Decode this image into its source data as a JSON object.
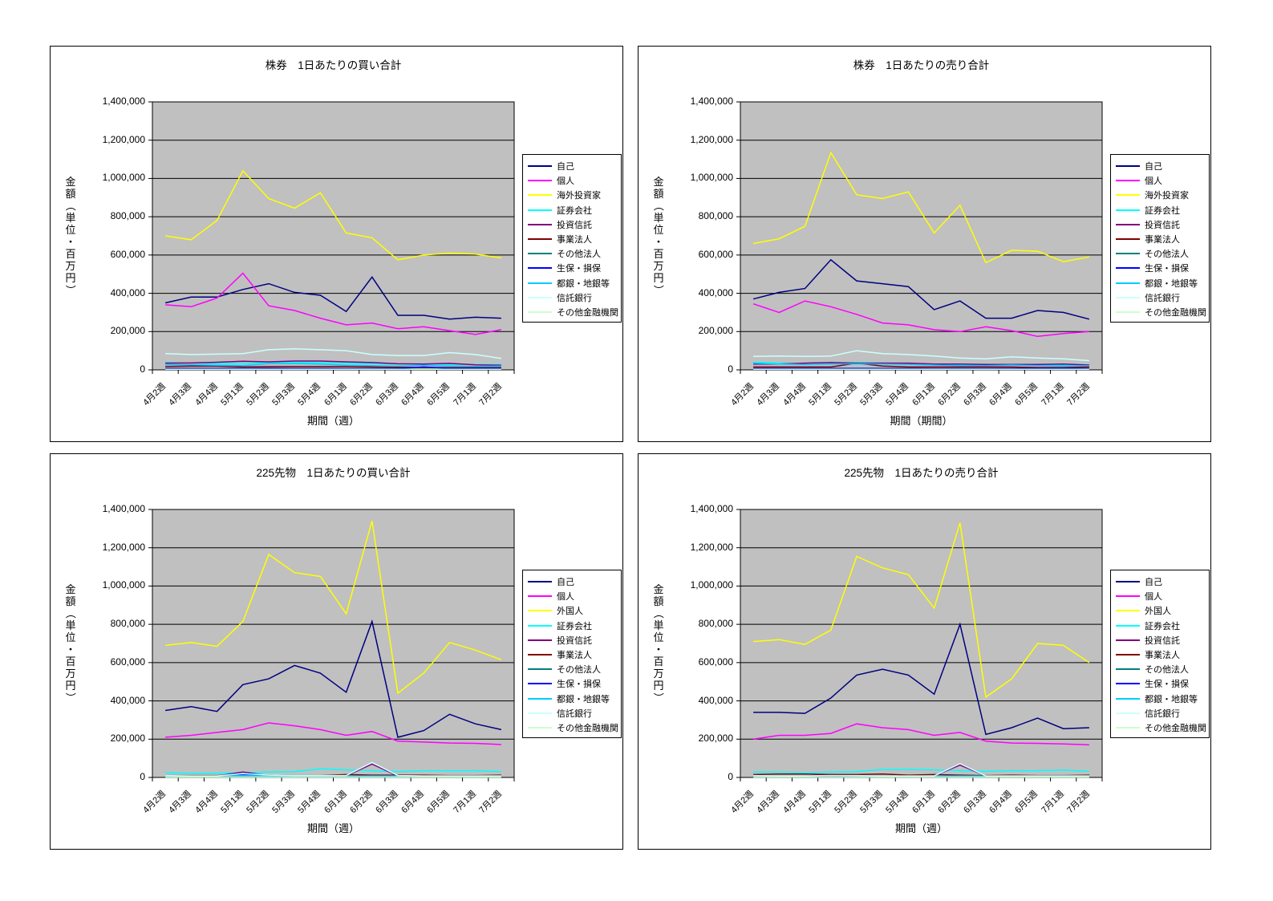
{
  "colors": {
    "page_background": "#FFFFFF",
    "panel_border": "#000000",
    "plot_background": "#C0C0C0",
    "grid": "#000000",
    "legend_background": "#FFFFFF"
  },
  "chart_data": [
    {
      "type": "line",
      "title": "株券　1日あたりの買い合計",
      "xlabel": "期間（週）",
      "ylabel": "金額（単位・百万円）",
      "ylim": [
        0,
        1400000
      ],
      "ytick_step": 200000,
      "grid": true,
      "legend_position": "right",
      "categories": [
        "4月2週",
        "4月3週",
        "4月4週",
        "5月1週",
        "5月2週",
        "5月3週",
        "5月4週",
        "6月1週",
        "6月2週",
        "6月3週",
        "6月4週",
        "6月5週",
        "7月1週",
        "7月2週"
      ],
      "series": [
        {
          "name": "自己",
          "color": "#000080",
          "values": [
            350000,
            380000,
            380000,
            420000,
            450000,
            405000,
            390000,
            305000,
            485000,
            285000,
            285000,
            265000,
            275000,
            270000
          ]
        },
        {
          "name": "個人",
          "color": "#FF00FF",
          "values": [
            340000,
            330000,
            375000,
            505000,
            335000,
            310000,
            270000,
            235000,
            245000,
            215000,
            225000,
            205000,
            185000,
            210000
          ]
        },
        {
          "name": "海外投資家",
          "color": "#FFFF00",
          "values": [
            700000,
            680000,
            780000,
            1040000,
            895000,
            845000,
            925000,
            715000,
            690000,
            575000,
            600000,
            610000,
            605000,
            585000
          ]
        },
        {
          "name": "証券会社",
          "color": "#00FFFF",
          "values": [
            40000,
            35000,
            33000,
            32000,
            40000,
            40000,
            38000,
            35000,
            33000,
            30000,
            32000,
            28000,
            28000,
            28000
          ]
        },
        {
          "name": "投資信託",
          "color": "#800080",
          "values": [
            35000,
            36000,
            40000,
            45000,
            42000,
            46000,
            46000,
            42000,
            38000,
            32000,
            30000,
            34000,
            26000,
            24000
          ]
        },
        {
          "name": "事業法人",
          "color": "#800000",
          "values": [
            18000,
            20000,
            20000,
            15000,
            17000,
            17000,
            17000,
            17000,
            15000,
            14000,
            12000,
            12000,
            12000,
            12000
          ]
        },
        {
          "name": "その他法人",
          "color": "#008080",
          "values": [
            5000,
            5000,
            5000,
            4000,
            5000,
            5000,
            5000,
            4000,
            4000,
            4000,
            4000,
            4000,
            4000,
            4000
          ]
        },
        {
          "name": "生保・損保",
          "color": "#0000FF",
          "values": [
            8000,
            8000,
            8000,
            8000,
            9000,
            8000,
            8000,
            7000,
            7000,
            7000,
            15000,
            8000,
            8000,
            8000
          ]
        },
        {
          "name": "都銀・地銀等",
          "color": "#00CCFF",
          "values": [
            28000,
            26000,
            24000,
            22000,
            33000,
            33000,
            30000,
            24000,
            22000,
            20000,
            24000,
            20000,
            18000,
            20000
          ]
        },
        {
          "name": "信託銀行",
          "color": "#CCFFFF",
          "values": [
            85000,
            80000,
            82000,
            85000,
            105000,
            110000,
            105000,
            100000,
            80000,
            75000,
            75000,
            90000,
            80000,
            60000
          ]
        },
        {
          "name": "その他金融機関",
          "color": "#CCFFCC",
          "values": [
            3000,
            3000,
            3000,
            3000,
            3000,
            3000,
            3000,
            3000,
            3000,
            3000,
            3000,
            3000,
            3000,
            3000
          ]
        }
      ]
    },
    {
      "type": "line",
      "title": "株券　1日あたりの売り合計",
      "xlabel": "期間（期間）",
      "ylabel": "金額（単位・百万円）",
      "ylim": [
        0,
        1400000
      ],
      "ytick_step": 200000,
      "grid": true,
      "legend_position": "right",
      "categories": [
        "4月2週",
        "4月3週",
        "4月4週",
        "5月1週",
        "5月2週",
        "5月3週",
        "5月4週",
        "6月1週",
        "6月2週",
        "6月3週",
        "6月4週",
        "6月5週",
        "7月1週",
        "7月2週"
      ],
      "series": [
        {
          "name": "自己",
          "color": "#000080",
          "values": [
            370000,
            405000,
            425000,
            575000,
            465000,
            450000,
            435000,
            315000,
            360000,
            270000,
            270000,
            310000,
            300000,
            265000
          ]
        },
        {
          "name": "個人",
          "color": "#FF00FF",
          "values": [
            345000,
            300000,
            360000,
            330000,
            290000,
            245000,
            235000,
            210000,
            200000,
            225000,
            205000,
            175000,
            190000,
            200000
          ]
        },
        {
          "name": "海外投資家",
          "color": "#FFFF00",
          "values": [
            660000,
            685000,
            750000,
            1135000,
            915000,
            895000,
            930000,
            715000,
            860000,
            560000,
            625000,
            620000,
            565000,
            590000
          ]
        },
        {
          "name": "証券会社",
          "color": "#00FFFF",
          "values": [
            40000,
            35000,
            32000,
            35000,
            38000,
            35000,
            32000,
            28000,
            28000,
            25000,
            28000,
            25000,
            25000,
            25000
          ]
        },
        {
          "name": "投資信託",
          "color": "#800080",
          "values": [
            30000,
            30000,
            35000,
            38000,
            35000,
            35000,
            35000,
            30000,
            30000,
            28000,
            28000,
            28000,
            30000,
            25000
          ]
        },
        {
          "name": "事業法人",
          "color": "#800000",
          "values": [
            15000,
            15000,
            15000,
            15000,
            35000,
            20000,
            15000,
            15000,
            15000,
            15000,
            15000,
            12000,
            12000,
            15000
          ]
        },
        {
          "name": "その他法人",
          "color": "#008080",
          "values": [
            5000,
            5000,
            5000,
            4000,
            5000,
            5000,
            5000,
            4000,
            4000,
            4000,
            4000,
            4000,
            4000,
            4000
          ]
        },
        {
          "name": "生保・損保",
          "color": "#0000FF",
          "values": [
            8000,
            8000,
            8000,
            8000,
            8000,
            8000,
            8000,
            7000,
            7000,
            7000,
            8000,
            8000,
            8000,
            8000
          ]
        },
        {
          "name": "都銀・地銀等",
          "color": "#00CCFF",
          "values": [
            35000,
            30000,
            28000,
            30000,
            32000,
            30000,
            28000,
            25000,
            22000,
            22000,
            25000,
            22000,
            20000,
            22000
          ]
        },
        {
          "name": "信託銀行",
          "color": "#CCFFFF",
          "values": [
            70000,
            72000,
            70000,
            72000,
            100000,
            85000,
            80000,
            72000,
            62000,
            58000,
            68000,
            62000,
            58000,
            48000
          ]
        },
        {
          "name": "その他金融機関",
          "color": "#CCFFCC",
          "values": [
            3000,
            3000,
            3000,
            3000,
            3000,
            3000,
            3000,
            3000,
            3000,
            3000,
            3000,
            3000,
            3000,
            3000
          ]
        }
      ]
    },
    {
      "type": "line",
      "title": "225先物　1日あたりの買い合計",
      "xlabel": "期間（週）",
      "ylabel": "金額（単位・百万円）",
      "ylim": [
        0,
        1400000
      ],
      "ytick_step": 200000,
      "grid": true,
      "legend_position": "right",
      "categories": [
        "4月2週",
        "4月3週",
        "4月4週",
        "5月1週",
        "5月2週",
        "5月3週",
        "5月4週",
        "6月1週",
        "6月2週",
        "6月3週",
        "6月4週",
        "6月5週",
        "7月1週",
        "7月2週"
      ],
      "series": [
        {
          "name": "自己",
          "color": "#000080",
          "values": [
            350000,
            370000,
            345000,
            485000,
            515000,
            585000,
            545000,
            445000,
            815000,
            210000,
            245000,
            330000,
            280000,
            250000
          ]
        },
        {
          "name": "個人",
          "color": "#FF00FF",
          "values": [
            210000,
            220000,
            235000,
            250000,
            285000,
            270000,
            250000,
            220000,
            240000,
            190000,
            185000,
            180000,
            178000,
            172000
          ]
        },
        {
          "name": "外国人",
          "color": "#FFFF00",
          "values": [
            690000,
            705000,
            685000,
            815000,
            1165000,
            1070000,
            1050000,
            855000,
            1340000,
            440000,
            545000,
            705000,
            665000,
            615000
          ]
        },
        {
          "name": "証券会社",
          "color": "#00FFFF",
          "values": [
            25000,
            22000,
            22000,
            25000,
            28000,
            30000,
            45000,
            40000,
            35000,
            30000,
            35000,
            35000,
            35000,
            30000
          ]
        },
        {
          "name": "投資信託",
          "color": "#800080",
          "values": [
            8000,
            8000,
            8000,
            28000,
            10000,
            8000,
            8000,
            8000,
            70000,
            8000,
            5000,
            5000,
            5000,
            10000
          ]
        },
        {
          "name": "事業法人",
          "color": "#800000",
          "values": [
            10000,
            10000,
            10000,
            15000,
            12000,
            10000,
            10000,
            15000,
            12000,
            12000,
            12000,
            10000,
            10000,
            12000
          ]
        },
        {
          "name": "その他法人",
          "color": "#008080",
          "values": [
            3000,
            3000,
            3000,
            3000,
            3000,
            3000,
            3000,
            3000,
            3000,
            3000,
            3000,
            3000,
            3000,
            3000
          ]
        },
        {
          "name": "生保・損保",
          "color": "#0000FF",
          "values": [
            5000,
            5000,
            5000,
            15000,
            8000,
            5000,
            5000,
            5000,
            5000,
            5000,
            5000,
            5000,
            8000,
            5000
          ]
        },
        {
          "name": "都銀・地銀等",
          "color": "#00CCFF",
          "values": [
            8000,
            8000,
            8000,
            10000,
            8000,
            8000,
            8000,
            8000,
            8000,
            8000,
            8000,
            8000,
            8000,
            8000
          ]
        },
        {
          "name": "信託銀行",
          "color": "#CCFFFF",
          "values": [
            10000,
            8000,
            8000,
            20000,
            12000,
            10000,
            10000,
            10000,
            78000,
            10000,
            8000,
            8000,
            8000,
            8000
          ]
        },
        {
          "name": "その他金融機関",
          "color": "#CCFFCC",
          "values": [
            2000,
            2000,
            2000,
            2000,
            2000,
            2000,
            2000,
            2000,
            2000,
            2000,
            2000,
            2000,
            2000,
            2000
          ]
        }
      ]
    },
    {
      "type": "line",
      "title": "225先物　1日あたりの売り合計",
      "xlabel": "期間（週）",
      "ylabel": "金額（単位・百万円）",
      "ylim": [
        0,
        1400000
      ],
      "ytick_step": 200000,
      "grid": true,
      "legend_position": "right",
      "categories": [
        "4月2週",
        "4月3週",
        "4月4週",
        "5月1週",
        "5月2週",
        "5月3週",
        "5月4週",
        "6月1週",
        "6月2週",
        "6月3週",
        "6月4週",
        "6月5週",
        "7月1週",
        "7月2週"
      ],
      "series": [
        {
          "name": "自己",
          "color": "#000080",
          "values": [
            340000,
            340000,
            335000,
            415000,
            535000,
            565000,
            535000,
            435000,
            800000,
            225000,
            260000,
            310000,
            255000,
            260000
          ]
        },
        {
          "name": "個人",
          "color": "#FF00FF",
          "values": [
            200000,
            220000,
            220000,
            230000,
            280000,
            260000,
            250000,
            220000,
            235000,
            190000,
            180000,
            178000,
            175000,
            170000
          ]
        },
        {
          "name": "外国人",
          "color": "#FFFF00",
          "values": [
            710000,
            720000,
            695000,
            770000,
            1155000,
            1095000,
            1060000,
            885000,
            1330000,
            420000,
            515000,
            700000,
            690000,
            600000
          ]
        },
        {
          "name": "証券会社",
          "color": "#00FFFF",
          "values": [
            28000,
            28000,
            25000,
            28000,
            30000,
            42000,
            42000,
            40000,
            35000,
            32000,
            35000,
            35000,
            38000,
            32000
          ]
        },
        {
          "name": "投資信託",
          "color": "#800080",
          "values": [
            8000,
            8000,
            8000,
            15000,
            10000,
            8000,
            8000,
            8000,
            65000,
            8000,
            5000,
            5000,
            5000,
            12000
          ]
        },
        {
          "name": "事業法人",
          "color": "#800000",
          "values": [
            15000,
            18000,
            18000,
            15000,
            15000,
            18000,
            12000,
            15000,
            12000,
            10000,
            12000,
            10000,
            10000,
            12000
          ]
        },
        {
          "name": "その他法人",
          "color": "#008080",
          "values": [
            3000,
            3000,
            3000,
            3000,
            3000,
            3000,
            3000,
            3000,
            3000,
            3000,
            3000,
            3000,
            3000,
            3000
          ]
        },
        {
          "name": "生保・損保",
          "color": "#0000FF",
          "values": [
            5000,
            5000,
            5000,
            8000,
            8000,
            5000,
            5000,
            5000,
            5000,
            5000,
            5000,
            5000,
            8000,
            5000
          ]
        },
        {
          "name": "都銀・地銀等",
          "color": "#00CCFF",
          "values": [
            8000,
            8000,
            8000,
            10000,
            8000,
            8000,
            8000,
            8000,
            8000,
            8000,
            8000,
            8000,
            8000,
            8000
          ]
        },
        {
          "name": "信託銀行",
          "color": "#CCFFFF",
          "values": [
            10000,
            8000,
            8000,
            10000,
            10000,
            8000,
            8000,
            8000,
            72000,
            8000,
            8000,
            8000,
            8000,
            8000
          ]
        },
        {
          "name": "その他金融機関",
          "color": "#CCFFCC",
          "values": [
            2000,
            2000,
            2000,
            2000,
            2000,
            2000,
            2000,
            2000,
            2000,
            2000,
            2000,
            2000,
            2000,
            2000
          ]
        }
      ]
    }
  ]
}
